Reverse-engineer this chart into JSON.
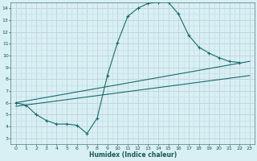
{
  "xlabel": "Humidex (Indice chaleur)",
  "bg_color": "#d8f0f4",
  "grid_major_color": "#c8b8c8",
  "grid_minor_color": "#c0dde4",
  "line_color": "#1a6b6b",
  "xlim": [
    -0.5,
    23.5
  ],
  "ylim": [
    2.5,
    14.5
  ],
  "xticks": [
    0,
    1,
    2,
    3,
    4,
    5,
    6,
    7,
    8,
    9,
    10,
    11,
    12,
    13,
    14,
    15,
    16,
    17,
    18,
    19,
    20,
    21,
    22,
    23
  ],
  "yticks": [
    3,
    4,
    5,
    6,
    7,
    8,
    9,
    10,
    11,
    12,
    13,
    14
  ],
  "curve_x": [
    0,
    1,
    2,
    3,
    4,
    5,
    6,
    7,
    8,
    9,
    10,
    11,
    12,
    13,
    14,
    15,
    16,
    17,
    18,
    19,
    20,
    21,
    22
  ],
  "curve_y": [
    6.0,
    5.8,
    5.0,
    4.5,
    4.2,
    4.2,
    4.1,
    3.4,
    4.7,
    8.3,
    11.1,
    13.3,
    14.0,
    14.4,
    14.5,
    14.5,
    13.5,
    11.7,
    10.7,
    10.2,
    9.8,
    9.5,
    9.4
  ],
  "line1_x": [
    0,
    23
  ],
  "line1_y": [
    6.0,
    9.5
  ],
  "line2_x": [
    0,
    23
  ],
  "line2_y": [
    5.7,
    8.3
  ]
}
